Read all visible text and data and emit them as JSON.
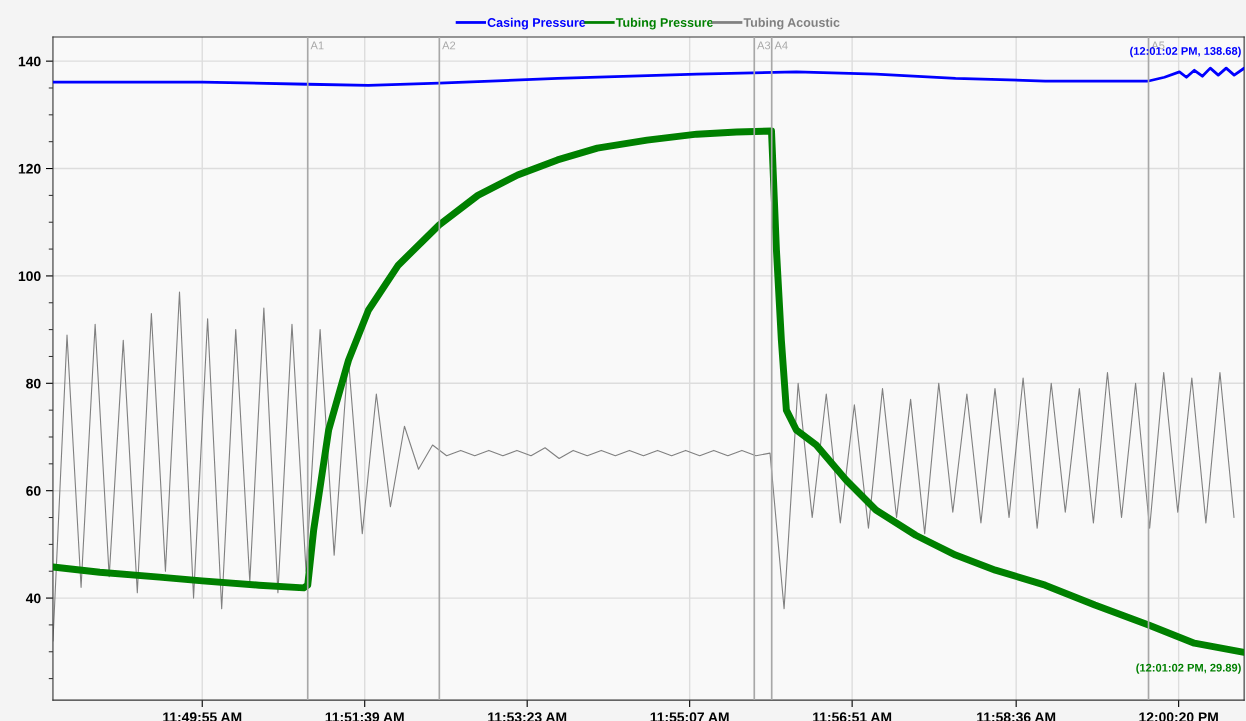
{
  "chart_data": {
    "type": "line",
    "xlim": [
      11.8054,
      12.0172
    ],
    "xticks": [
      {
        "value": 11.831944,
        "label": "11:49:55 AM"
      },
      {
        "value": 11.860833,
        "label": "11:51:39 AM"
      },
      {
        "value": 11.889722,
        "label": "11:53:23 AM"
      },
      {
        "value": 11.918611,
        "label": "11:55:07 AM"
      },
      {
        "value": 11.9475,
        "label": "11:56:51 AM"
      },
      {
        "value": 11.976667,
        "label": "11:58:36 AM"
      },
      {
        "value": 12.005556,
        "label": "12:00:20 PM"
      }
    ],
    "ylim": [
      21,
      144.5
    ],
    "yticks": [
      {
        "value": 25,
        "label": null
      },
      {
        "value": 30,
        "label": null
      },
      {
        "value": 35,
        "label": null
      },
      40,
      {
        "value": 45,
        "label": null
      },
      {
        "value": 50,
        "label": null
      },
      {
        "value": 55,
        "label": null
      },
      60,
      {
        "value": 65,
        "label": null
      },
      {
        "value": 70,
        "label": null
      },
      {
        "value": 75,
        "label": null
      },
      80,
      {
        "value": 85,
        "label": null
      },
      {
        "value": 90,
        "label": null
      },
      {
        "value": 95,
        "label": null
      },
      100,
      {
        "value": 105,
        "label": null
      },
      {
        "value": 110,
        "label": null
      },
      {
        "value": 115,
        "label": null
      },
      120,
      {
        "value": 125,
        "label": null
      },
      {
        "value": 130,
        "label": null
      },
      {
        "value": 135,
        "label": null
      },
      140
    ],
    "grid": true,
    "legend": "top",
    "series": [
      {
        "name": "Casing Pressure",
        "color": "#0000ff",
        "x": [
          11.8054,
          11.83194,
          11.8507,
          11.86149,
          11.87406,
          11.89511,
          11.91988,
          11.93758,
          11.95173,
          11.96589,
          11.98182,
          12.00021,
          12.00304,
          12.0057,
          12.00694,
          12.00835,
          12.00977,
          12.01118,
          12.0126,
          12.01401,
          12.01543,
          12.0172
        ],
        "values": [
          136.1,
          136.1,
          135.7,
          135.5,
          135.9,
          136.8,
          137.6,
          138.0,
          137.6,
          136.8,
          136.3,
          136.3,
          137.0,
          138.0,
          137.0,
          138.3,
          137.2,
          138.7,
          137.4,
          138.7,
          137.4,
          138.68
        ]
      },
      {
        "name": "Tubing Pressure",
        "color": "#008000",
        "x": [
          11.8054,
          11.81372,
          11.82434,
          11.83194,
          11.84203,
          11.84999,
          11.8507,
          11.85176,
          11.85442,
          11.85795,
          11.86149,
          11.8668,
          11.87406,
          11.88095,
          11.88803,
          11.89511,
          11.90219,
          11.91104,
          11.91988,
          11.92696,
          11.93316,
          11.93404,
          11.93492,
          11.93581,
          11.93758,
          11.94112,
          11.94642,
          11.95173,
          11.95881,
          11.96589,
          11.97297,
          11.98182,
          11.99066,
          12.00021,
          12.00835,
          12.0172
        ],
        "values": [
          45.8,
          44.8,
          43.9,
          43.2,
          42.4,
          41.9,
          42.4,
          52.7,
          71.3,
          84.3,
          93.6,
          102.0,
          109.5,
          115.0,
          118.8,
          121.6,
          123.8,
          125.3,
          126.4,
          126.8,
          127.0,
          104.8,
          88.0,
          75.0,
          71.3,
          68.5,
          62.0,
          56.4,
          51.7,
          48.0,
          45.2,
          42.4,
          38.7,
          35.0,
          31.6,
          29.89
        ]
      },
      {
        "name": "Tubing Acoustic",
        "color": "#808080",
        "x": [
          11.8054,
          11.8079,
          11.8104,
          11.8129,
          11.8154,
          11.8179,
          11.8204,
          11.8229,
          11.8254,
          11.8279,
          11.8304,
          11.8329,
          11.8354,
          11.8379,
          11.8404,
          11.8429,
          11.8454,
          11.8479,
          11.8504,
          11.8529,
          11.8554,
          11.8579,
          11.8604,
          11.8629,
          11.8654,
          11.8679,
          11.8704,
          11.8729,
          11.8754,
          11.8779,
          11.8804,
          11.8829,
          11.8854,
          11.8879,
          11.8904,
          11.8929,
          11.8954,
          11.8979,
          11.9004,
          11.9029,
          11.9054,
          11.9079,
          11.9104,
          11.9129,
          11.9154,
          11.9179,
          11.9204,
          11.9229,
          11.9254,
          11.9279,
          11.9304,
          11.9329,
          11.9354,
          11.9379,
          11.9404,
          11.9429,
          11.9454,
          11.9479,
          11.9504,
          11.9529,
          11.9554,
          11.9579,
          11.9604,
          11.9629,
          11.9654,
          11.9679,
          11.9704,
          11.9729,
          11.9754,
          11.9779,
          11.9804,
          11.9829,
          11.9854,
          11.9879,
          11.9904,
          11.9929,
          11.9954,
          11.9979,
          12.0004,
          12.0029,
          12.0054,
          12.0079,
          12.0104,
          12.0129,
          12.0154
        ],
        "values": [
          32,
          89,
          42,
          91,
          44,
          88,
          41,
          93,
          45,
          97,
          40,
          92,
          38,
          90,
          43,
          94,
          41,
          91,
          45,
          90,
          48,
          85,
          52,
          78,
          57,
          72,
          64,
          68.5,
          66.5,
          67.5,
          66.5,
          67.5,
          66.5,
          67.5,
          66.5,
          68,
          66,
          67.5,
          66.5,
          67.5,
          66.5,
          67.5,
          66.5,
          67.5,
          66.5,
          67.5,
          66.5,
          67.5,
          66.5,
          67.5,
          66.5,
          67,
          38,
          80,
          55,
          78,
          54,
          76,
          53,
          79,
          55,
          77,
          52,
          80,
          56,
          78,
          54,
          79,
          55,
          81,
          53,
          80,
          56,
          79,
          54,
          82,
          55,
          80,
          53,
          82,
          56,
          81,
          54,
          82,
          55
        ]
      }
    ],
    "ref_lines": [
      {
        "axis": "x",
        "value": 11.8507,
        "label": "A1",
        "color": "#a8a8a8"
      },
      {
        "axis": "x",
        "value": 11.8741,
        "label": "A2",
        "color": "#a8a8a8"
      },
      {
        "axis": "x",
        "value": 11.9301,
        "label": "A3",
        "color": "#a8a8a8"
      },
      {
        "axis": "x",
        "value": 11.9332,
        "label": "A4",
        "color": "#a8a8a8"
      },
      {
        "axis": "x",
        "value": 12.0002,
        "label": "A5",
        "color": "#a8a8a8"
      }
    ],
    "annotations": [
      {
        "text": "(12:01:02 PM, 138.68)",
        "x": 12.0172,
        "y": 138.68
      },
      {
        "text": "(12:01:02 PM, 29.89)",
        "x": 12.0172,
        "y": 29.89
      }
    ]
  }
}
